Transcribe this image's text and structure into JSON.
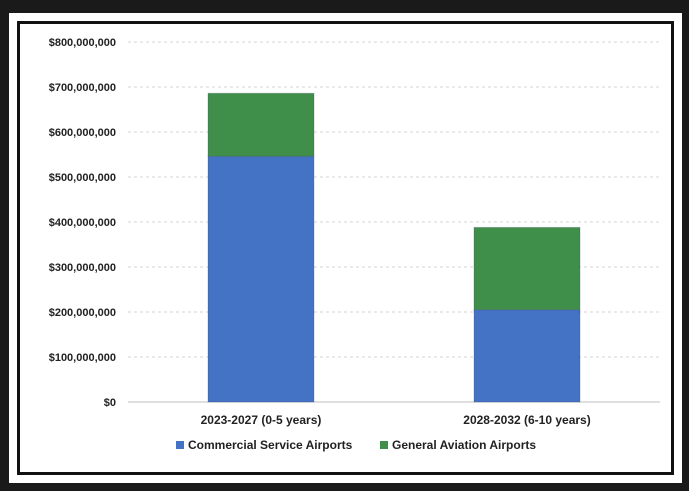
{
  "chart_data": {
    "type": "bar",
    "stacked": true,
    "categories": [
      "2023-2027 (0-5 years)",
      "2028-2032 (6-10 years)"
    ],
    "series": [
      {
        "name": "Commercial Service Airports",
        "color": "#4472c4",
        "values": [
          546000000,
          205000000
        ]
      },
      {
        "name": "General Aviation Airports",
        "color": "#3f8f4a",
        "values": [
          140000000,
          183000000
        ]
      }
    ],
    "ylim": [
      0,
      800000000
    ],
    "yticks": [
      "$0",
      "$100,000,000",
      "$200,000,000",
      "$300,000,000",
      "$400,000,000",
      "$500,000,000",
      "$600,000,000",
      "$700,000,000",
      "$800,000,000"
    ],
    "ytick_values": [
      0,
      100000000,
      200000000,
      300000000,
      400000000,
      500000000,
      600000000,
      700000000,
      800000000
    ],
    "grid": true,
    "legend_position": "bottom"
  }
}
